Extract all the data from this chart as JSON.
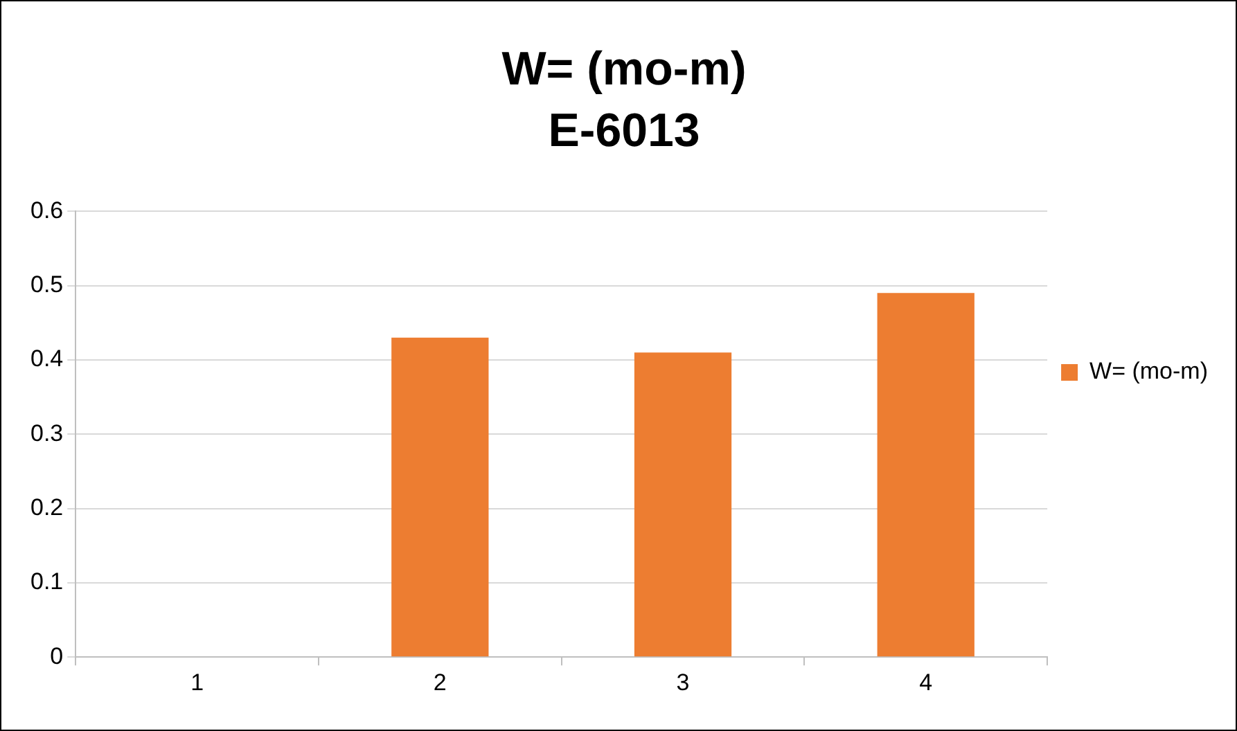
{
  "chart_data": {
    "type": "bar",
    "title": "W= (mo-m)",
    "subtitle": "E-6013",
    "categories": [
      "1",
      "2",
      "3",
      "4"
    ],
    "series": [
      {
        "name": "W= (mo-m)",
        "color": "#ed7d31",
        "values": [
          0,
          0.43,
          0.41,
          0.49
        ]
      }
    ],
    "ylim": [
      0,
      0.6
    ],
    "yticks": [
      0,
      0.1,
      0.2,
      0.3,
      0.4,
      0.5,
      0.6
    ],
    "grid": "y",
    "legend": "right"
  }
}
